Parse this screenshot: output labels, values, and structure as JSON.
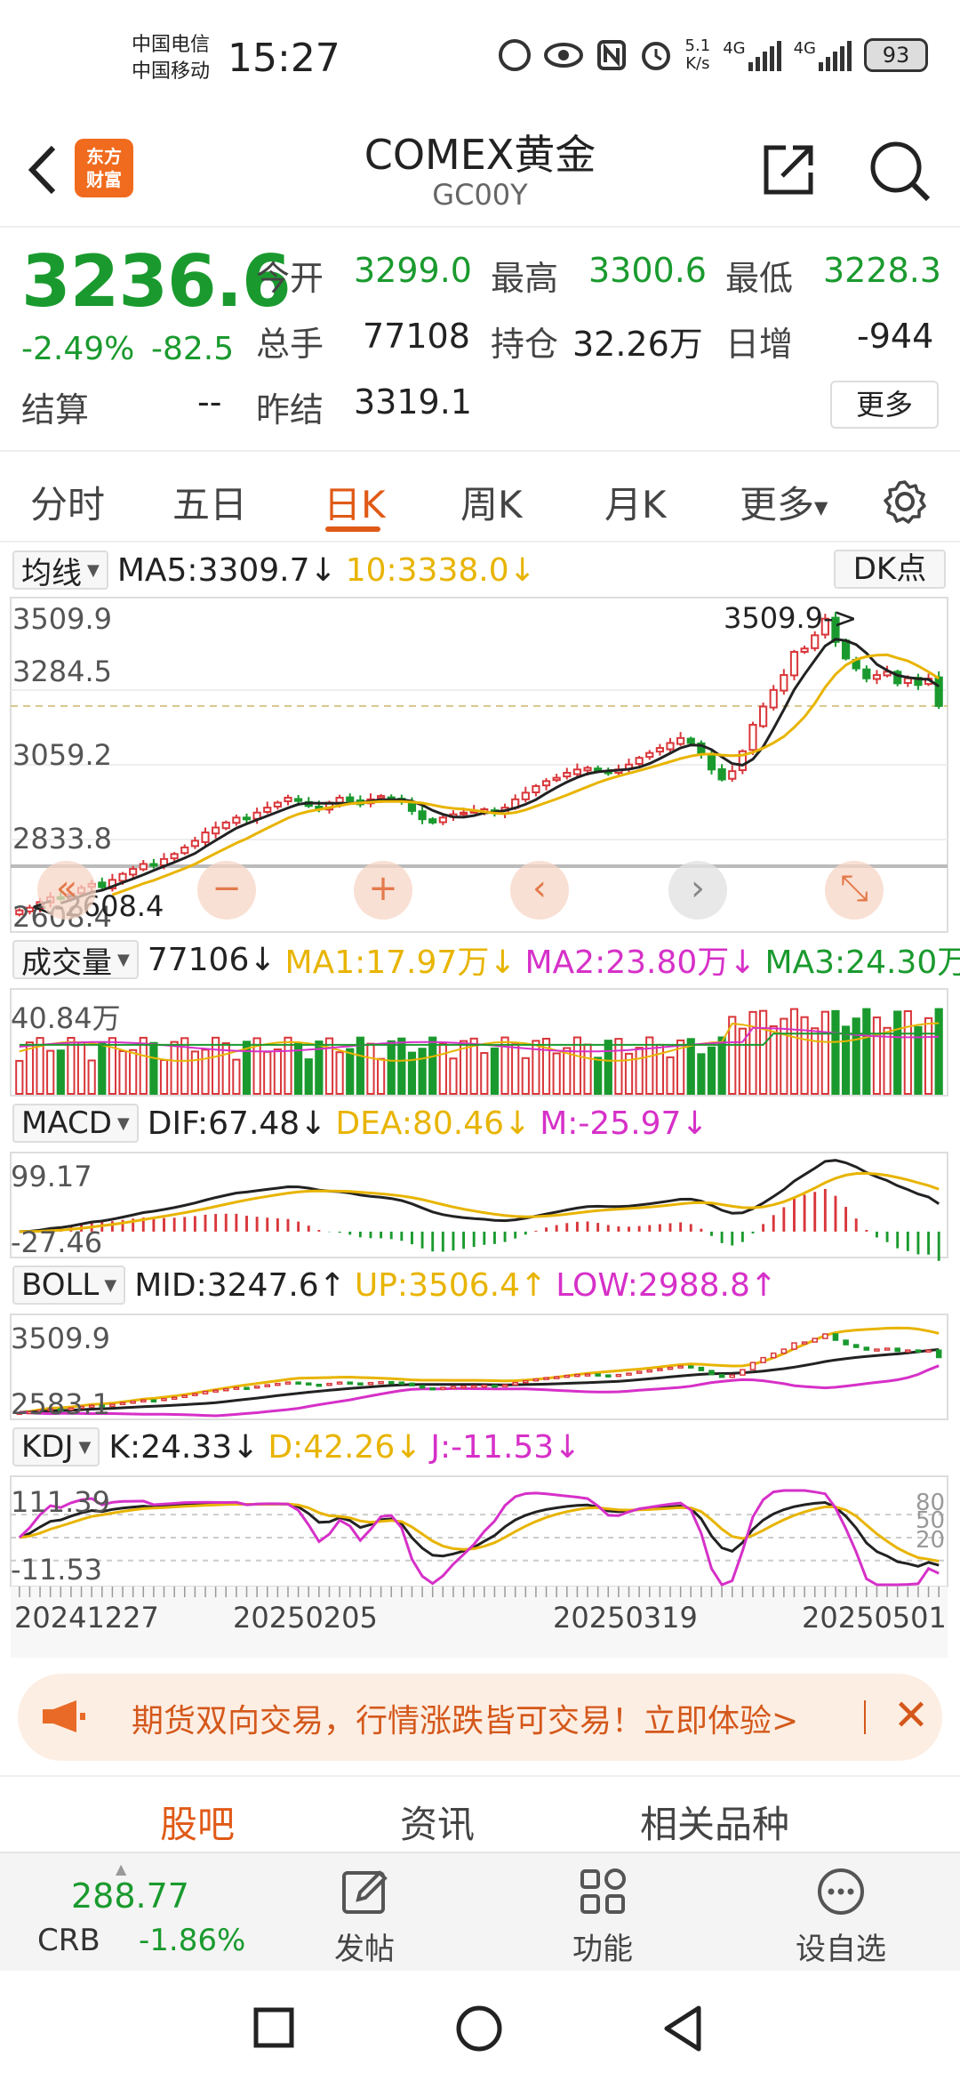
{
  "status_bar": {
    "carrier1": "中国电信",
    "carrier2": "中国移动",
    "time": "15:27",
    "net_speed_value": "5.1",
    "net_speed_unit": "K/s",
    "signal1_label": "4G",
    "signal2_label": "4G",
    "battery": "93"
  },
  "header": {
    "logo_text1": "东方",
    "logo_text2": "财富",
    "title": "COMEX黄金",
    "code": "GC00Y"
  },
  "quote": {
    "price": "3236.6",
    "change_pct": "-2.49%",
    "change": "-82.5",
    "open_label": "今开",
    "open": "3299.0",
    "high_label": "最高",
    "high": "3300.6",
    "low_label": "最低",
    "low": "3228.3",
    "volume_label": "总手",
    "volume": "77108",
    "oi_label": "持仓",
    "oi": "32.26万",
    "daily_inc_label": "日增",
    "daily_inc": "-944",
    "settle_label": "结算",
    "settle": "--",
    "prev_settle_label": "昨结",
    "prev_settle": "3319.1",
    "more_button": "更多"
  },
  "tabs": {
    "items": [
      "分时",
      "五日",
      "日K",
      "周K",
      "月K",
      "更多"
    ],
    "active": "日K"
  },
  "chart_ui": {
    "dk_button": "DK点",
    "ma": {
      "selector": "均线",
      "ma5": "MA5:3309.7↓",
      "ma10": "10:3338.0↓"
    },
    "vol": {
      "selector": "成交量",
      "value": "77106↓",
      "ma1": "MA1:17.97万↓",
      "ma2": "MA2:23.80万↓",
      "ma3": "MA3:24.30万↓"
    },
    "macd": {
      "selector": "MACD",
      "dif": "DIF:67.48↓",
      "dea": "DEA:80.46↓",
      "m": "M:-25.97↓"
    },
    "boll": {
      "selector": "BOLL",
      "mid": "MID:3247.6↑",
      "up": "UP:3506.4↑",
      "low": "LOW:2988.8↑"
    },
    "kdj": {
      "selector": "KDJ",
      "k": "K:24.33↓",
      "d": "D:42.26↓",
      "j": "J:-11.53↓"
    },
    "controls": [
      "«",
      "−",
      "+",
      "‹",
      "›",
      "⤡"
    ]
  },
  "chart_data": [
    {
      "type": "candlestick",
      "title": "日K",
      "y_ticks": [
        "3509.9",
        "3284.5",
        "3059.2",
        "2833.8",
        "2608.4"
      ],
      "max_label": "3509.9->",
      "min_label": "<-2608.4",
      "x_ticks": [
        "20241227",
        "20250205",
        "20250319",
        "20250501"
      ],
      "close": [
        2620,
        2628,
        2645,
        2660,
        2655,
        2670,
        2688,
        2700,
        2690,
        2712,
        2730,
        2745,
        2760,
        2755,
        2775,
        2790,
        2810,
        2830,
        2855,
        2870,
        2885,
        2900,
        2895,
        2915,
        2930,
        2945,
        2960,
        2950,
        2935,
        2925,
        2945,
        2960,
        2950,
        2940,
        2955,
        2965,
        2960,
        2948,
        2920,
        2895,
        2885,
        2900,
        2910,
        2915,
        2920,
        2925,
        2915,
        2930,
        2955,
        2975,
        2995,
        3010,
        3020,
        3035,
        3045,
        3050,
        3040,
        3035,
        3045,
        3060,
        3080,
        3095,
        3110,
        3125,
        3140,
        3125,
        3090,
        3045,
        3015,
        3040,
        3100,
        3180,
        3235,
        3285,
        3330,
        3400,
        3410,
        3450,
        3500,
        3430,
        3380,
        3350,
        3320,
        3330,
        3340,
        3305,
        3320,
        3300,
        3319.1,
        3236.6
      ]
    },
    {
      "type": "bar",
      "title": "成交量",
      "y_ticks": [
        "40.84万"
      ]
    },
    {
      "type": "line",
      "title": "MACD",
      "y_ticks": [
        "99.17",
        "-27.46"
      ]
    },
    {
      "type": "line",
      "title": "BOLL",
      "y_ticks": [
        "3509.9",
        "2583.1"
      ]
    },
    {
      "type": "line",
      "title": "KDJ",
      "y_ticks": [
        "111.39",
        "-11.53"
      ],
      "right_ticks": [
        "80",
        "50",
        "20"
      ]
    }
  ],
  "promo": {
    "text": "期货双向交易，行情涨跌皆可交易！立即体验>"
  },
  "section_tabs": [
    "股吧",
    "资讯",
    "相关品种"
  ],
  "toolbar": {
    "crb_value": "288.77",
    "crb_name": "CRB",
    "crb_pct": "-1.86%",
    "items": [
      "发帖",
      "功能",
      "设自选"
    ]
  },
  "colors": {
    "up": "#d9363a",
    "down": "#1a9a2e",
    "accent": "#e05a17",
    "ma5": "#222222",
    "ma10": "#e8b400",
    "magenta": "#d630c8"
  }
}
